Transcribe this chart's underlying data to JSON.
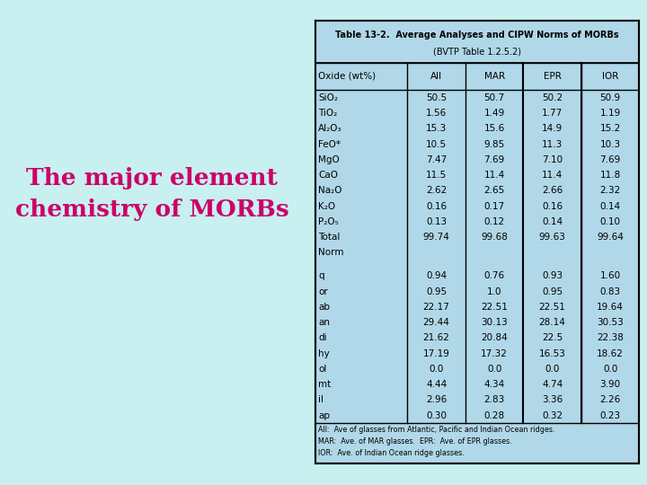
{
  "bg_color": "#c8f0f0",
  "table_bg_color": "#b0d8e8",
  "title_text": "The major element\nchemistry of MORBs",
  "title_color": "#cc0066",
  "table_title_line1": "Table 13-2.  Average Analyses and CIPW Norms of MORBs",
  "table_title_line2": "(BVTP Table 1.2.5.2)",
  "col_headers": [
    "Oxide (wt%)",
    "All",
    "MAR",
    "EPR",
    "IOR"
  ],
  "oxide_rows": [
    [
      "SiO₂",
      "50.5",
      "50.7",
      "50.2",
      "50.9"
    ],
    [
      "TiO₂",
      "1.56",
      "1.49",
      "1.77",
      "1.19"
    ],
    [
      "Al₂O₃",
      "15.3",
      "15.6",
      "14.9",
      "15.2"
    ],
    [
      "FeO*",
      "10.5",
      "9.85",
      "11.3",
      "10.3"
    ],
    [
      "MgO",
      "7.47",
      "7.69",
      "7.10",
      "7.69"
    ],
    [
      "CaO",
      "11.5",
      "11.4",
      "11.4",
      "11.8"
    ],
    [
      "Na₂O",
      "2.62",
      "2.65",
      "2.66",
      "2.32"
    ],
    [
      "K₂O",
      "0.16",
      "0.17",
      "0.16",
      "0.14"
    ],
    [
      "P₂O₅",
      "0.13",
      "0.12",
      "0.14",
      "0.10"
    ],
    [
      "Total",
      "99.74",
      "99.68",
      "99.63",
      "99.64"
    ]
  ],
  "norm_rows": [
    [
      "q",
      "0.94",
      "0.76",
      "0.93",
      "1.60"
    ],
    [
      "or",
      "0.95",
      "1.0",
      "0.95",
      "0.83"
    ],
    [
      "ab",
      "22.17",
      "22.51",
      "22.51",
      "19.64"
    ],
    [
      "an",
      "29.44",
      "30.13",
      "28.14",
      "30.53"
    ],
    [
      "di",
      "21.62",
      "20.84",
      "22.5",
      "22.38"
    ],
    [
      "hy",
      "17.19",
      "17.32",
      "16.53",
      "18.62"
    ],
    [
      "ol",
      "0.0",
      "0.0",
      "0.0",
      "0.0"
    ],
    [
      "mt",
      "4.44",
      "4.34",
      "4.74",
      "3.90"
    ],
    [
      "il",
      "2.96",
      "2.83",
      "3.36",
      "2.26"
    ],
    [
      "ap",
      "0.30",
      "0.28",
      "0.32",
      "0.23"
    ]
  ],
  "footnotes": [
    "All:  Ave of glasses from Atlantic, Pacific and Indian Ocean ridges.",
    "MAR:  Ave. of MAR glasses.  EPR:  Ave. of EPR glasses.",
    "IOR:  Ave. of Indian Ocean ridge glasses."
  ]
}
